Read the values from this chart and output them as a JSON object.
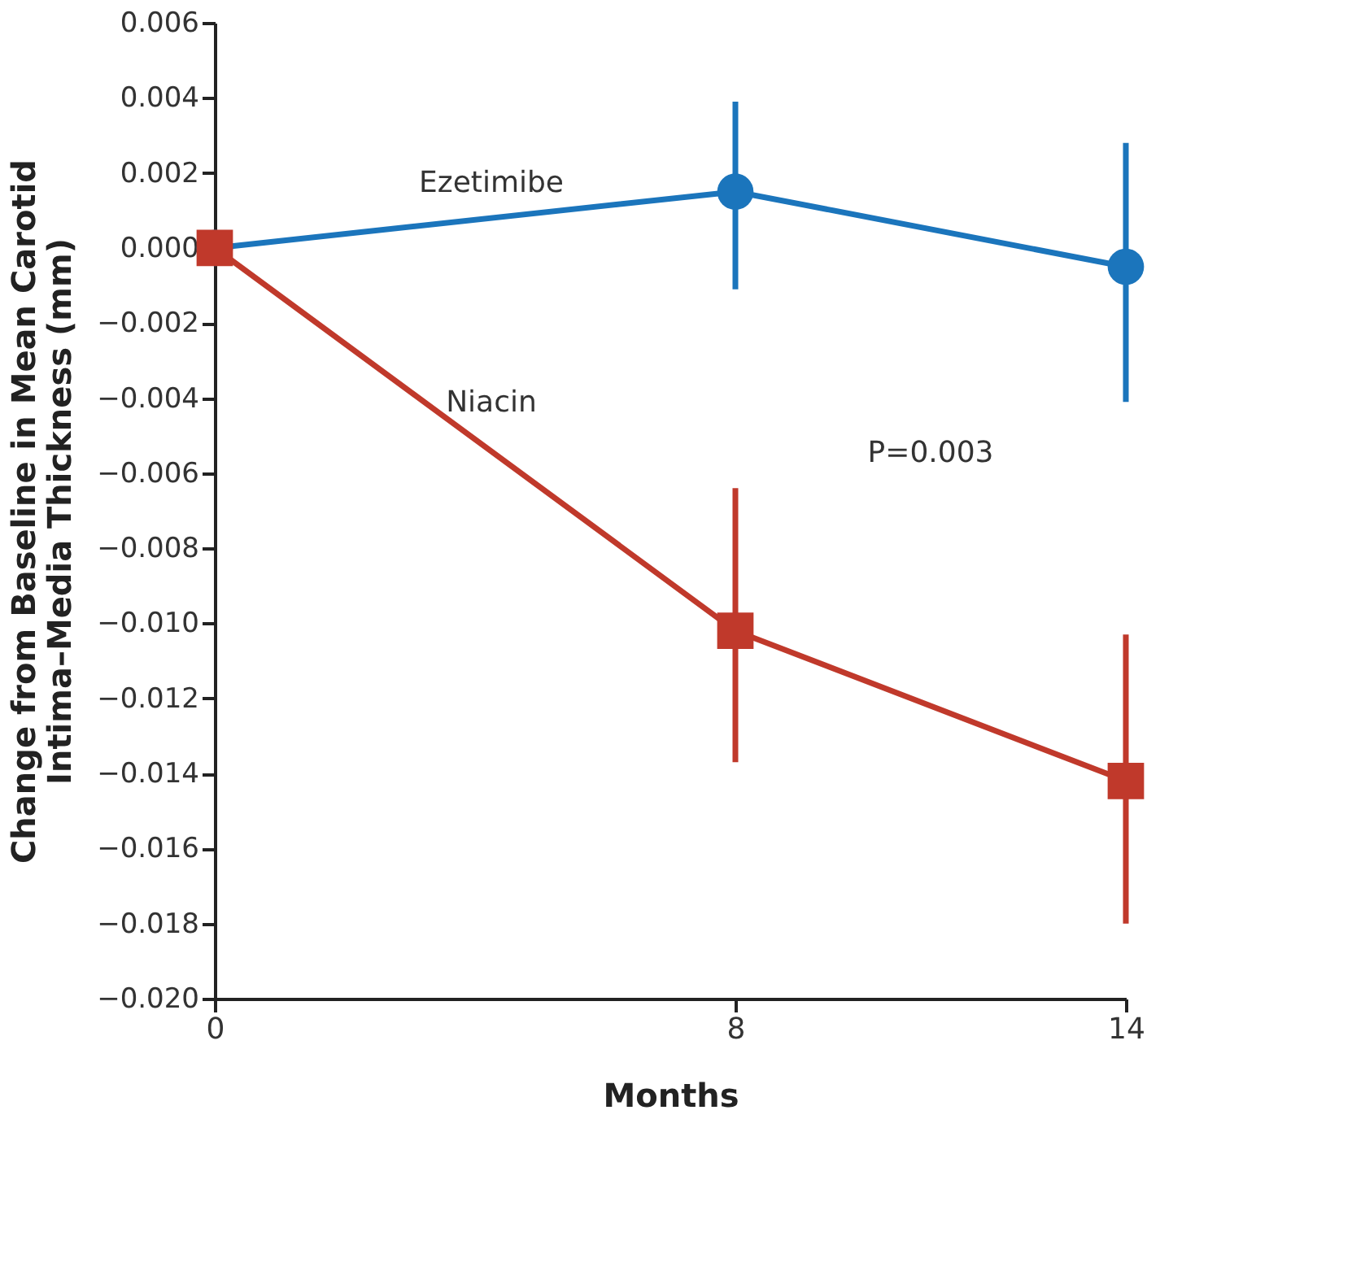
{
  "chart_data": {
    "type": "line",
    "xlabel": "Months",
    "ylabel": "Change from Baseline in Mean Carotid Intima–Media Thickness (mm)",
    "x": [
      0,
      8,
      14
    ],
    "series": [
      {
        "name": "Ezetimibe",
        "color": "#1b75bc",
        "marker": "circle",
        "values": [
          0.0,
          0.0015,
          -0.0005
        ],
        "errors": [
          null,
          [
            -0.0011,
            0.0039
          ],
          [
            -0.0041,
            0.0028
          ]
        ]
      },
      {
        "name": "Niacin",
        "color": "#c0392b",
        "marker": "square",
        "values": [
          0.0,
          -0.0102,
          -0.0142
        ],
        "errors": [
          null,
          [
            -0.0137,
            -0.0064
          ],
          [
            -0.018,
            -0.0103
          ]
        ]
      }
    ],
    "annotations": [
      "P=0.003"
    ],
    "xlim": [
      0,
      14
    ],
    "xticks": [
      0,
      8,
      14
    ],
    "ylim": [
      -0.02,
      0.006
    ],
    "yticks": [
      {
        "value": 0.006,
        "label": "0.006"
      },
      {
        "value": 0.004,
        "label": "0.004"
      },
      {
        "value": 0.002,
        "label": "0.002"
      },
      {
        "value": 0.0,
        "label": "0.000"
      },
      {
        "value": -0.002,
        "label": "−0.002"
      },
      {
        "value": -0.004,
        "label": "−0.004"
      },
      {
        "value": -0.006,
        "label": "−0.006"
      },
      {
        "value": -0.008,
        "label": "−0.008"
      },
      {
        "value": -0.01,
        "label": "−0.010"
      },
      {
        "value": -0.012,
        "label": "−0.012"
      },
      {
        "value": -0.014,
        "label": "−0.014"
      },
      {
        "value": -0.016,
        "label": "−0.016"
      },
      {
        "value": -0.018,
        "label": "−0.018"
      },
      {
        "value": -0.02,
        "label": "−0.020"
      }
    ],
    "grid": false,
    "legend": false,
    "line_style": "solid"
  }
}
